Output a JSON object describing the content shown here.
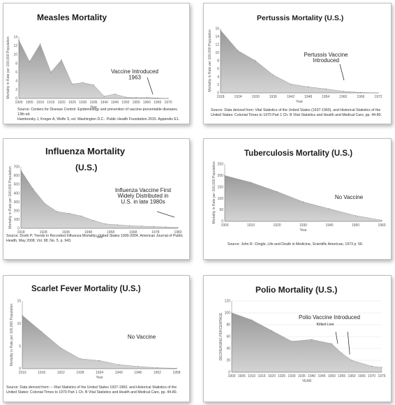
{
  "chart_data": [
    {
      "type": "area",
      "title": "Measles Mortality",
      "xlabel": "Year",
      "ylabel": "Mortality in Rate per 100,000 Population",
      "x": [
        1900,
        1905,
        1910,
        1915,
        1920,
        1925,
        1930,
        1935,
        1940,
        1945,
        1950,
        1955,
        1960,
        1965,
        1970
      ],
      "values": [
        13.3,
        8.4,
        12.4,
        6.0,
        8.8,
        3.3,
        3.6,
        3.1,
        0.5,
        1.0,
        0.3,
        0.2,
        0.2,
        0.1,
        0.0
      ],
      "ylim": [
        0,
        14
      ],
      "yticks": [
        "0",
        "2",
        "4",
        "6",
        "8",
        "10",
        "12",
        "14"
      ],
      "xticks": [
        "1900",
        "1905",
        "1910",
        "1915",
        "1920",
        "1925",
        "1930",
        "1935",
        "1940",
        "1945",
        "1950",
        "1955",
        "1960",
        "1965",
        "1970"
      ],
      "annotation": [
        "Vaccine Introduced",
        "1963"
      ],
      "source": [
        "Source: Centers for Disease Control. Epidemiology and prevention of vaccine-preventable diseases. 13th ed.",
        "Hamborsky J, Kroger A, Wolfe S, ed. Washington D.C.: Public Health Foundation 2015. Appendix E1."
      ]
    },
    {
      "type": "area",
      "title": "Pertussis Mortality (U.S.)",
      "xlabel": "Year",
      "ylabel": "Mortality in Rate per 100,000 Population",
      "x": [
        1918,
        1924,
        1930,
        1936,
        1942,
        1948,
        1954,
        1960,
        1966,
        1972
      ],
      "values": [
        15.6,
        10.5,
        8.0,
        4.5,
        2.2,
        1.5,
        1.0,
        0.4,
        0.1,
        0.0
      ],
      "ylim": [
        0,
        16
      ],
      "yticks": [
        "0",
        "2",
        "4",
        "6",
        "8",
        "10",
        "12",
        "14",
        "16"
      ],
      "xticks": [
        "1918",
        "1924",
        "1930",
        "1936",
        "1942",
        "1948",
        "1954",
        "1960",
        "1966",
        "1972"
      ],
      "annotation": [
        "Pertussis Vaccine",
        "Introduced"
      ],
      "source": [
        "Source: Data derived from: Vital Statistics of the United States (1937-1960), and Historical Statistics of the",
        "United States: Colonial Times to 1970 Part 1 Ch. B Vital Statistics and Health and Medical Care, pp. 44-80."
      ]
    },
    {
      "type": "area",
      "title": "Influenza Mortality",
      "subtitle": "(U.S.)",
      "xlabel": "Year",
      "ylabel": "Mortality in Rate per 100,000 Population",
      "x": [
        1918,
        1923,
        1928,
        1933,
        1938,
        1943,
        1948,
        1953,
        1958,
        1963,
        1968,
        1973,
        1978,
        1983
      ],
      "values": [
        660,
        450,
        280,
        190,
        170,
        140,
        90,
        50,
        40,
        30,
        25,
        20,
        15,
        10
      ],
      "ylim": [
        0,
        700
      ],
      "yticks": [
        "0",
        "100",
        "200",
        "300",
        "400",
        "500",
        "600",
        "700"
      ],
      "xticks": [
        "1918",
        "1928",
        "1938",
        "1948",
        "1958",
        "1968",
        "1978",
        "1983"
      ],
      "annotation": [
        "Influenza Vaccine First",
        "Widely Distributed in",
        "U.S. in late 1980s"
      ],
      "source": [
        "Source: Doshi P, Trends in Recorded Influenza Mortality: United States 1900-2004. American Journal of Public",
        "Health, May 2008, Vol. 98, No. 5, p. 943."
      ]
    },
    {
      "type": "area",
      "title": "Tuberculosis Mortality (U.S.)",
      "xlabel": "Year",
      "ylabel": "Mortality in Rate per 100,000 Population",
      "x": [
        1900,
        1910,
        1920,
        1930,
        1940,
        1950,
        1960
      ],
      "values": [
        200,
        170,
        130,
        85,
        55,
        25,
        5
      ],
      "ylim": [
        0,
        250
      ],
      "yticks": [
        "0",
        "50",
        "100",
        "150",
        "200",
        "250"
      ],
      "xticks": [
        "1900",
        "1910",
        "1920",
        "1930",
        "1940",
        "1950",
        "1960"
      ],
      "annotation": [
        "No Vaccine"
      ],
      "source": [
        "Source: John R. Clingle, Life and Death in Medicine, Scientific American, 1973 p. 56."
      ]
    },
    {
      "type": "area",
      "title": "Scarlet Fever Mortality (U.S.)",
      "xlabel": "Year",
      "ylabel": "Mortality in Rate per 100,000 Population",
      "x": [
        1910,
        1916,
        1922,
        1928,
        1934,
        1940,
        1946,
        1952,
        1958
      ],
      "values": [
        11.8,
        8.2,
        4.6,
        2.2,
        1.8,
        0.9,
        0.5,
        0.2,
        0.1
      ],
      "ylim": [
        0,
        15
      ],
      "yticks": [
        "0",
        "5",
        "10",
        "15"
      ],
      "xticks": [
        "1910",
        "1916",
        "1922",
        "1928",
        "1934",
        "1940",
        "1946",
        "1952",
        "1958"
      ],
      "annotation": [
        "No Vaccine"
      ],
      "source": [
        "Source: Data derived from: – Vital Statistics of the United States 1937-1960, and Historical Statistics of the",
        "United States: Colonial Times to 1970 Part 1 Ch. B Vital Statistics and Health and Medical Care, pp. 44-80."
      ]
    },
    {
      "type": "area",
      "title": "Polio Mortality (U.S.)",
      "xlabel": "YEAR",
      "ylabel": "DECREASING PERCENTAGE",
      "x": [
        1900,
        1910,
        1920,
        1930,
        1940,
        1950,
        1955,
        1960,
        1970,
        1975
      ],
      "values": [
        100,
        88,
        70,
        52,
        55,
        48,
        32,
        20,
        10,
        8
      ],
      "ylim": [
        0,
        120
      ],
      "yticks": [
        "0",
        "20",
        "40",
        "60",
        "80",
        "100",
        "120"
      ],
      "xticks": [
        "1900",
        "1905",
        "1910",
        "1915",
        "1920",
        "1925",
        "1930",
        "1935",
        "1940",
        "1945",
        "1950",
        "1955",
        "1960",
        "1965",
        "1970",
        "1975"
      ],
      "annotation": [
        "Polio Vaccine Introduced",
        "Killed Live"
      ],
      "source": []
    }
  ]
}
